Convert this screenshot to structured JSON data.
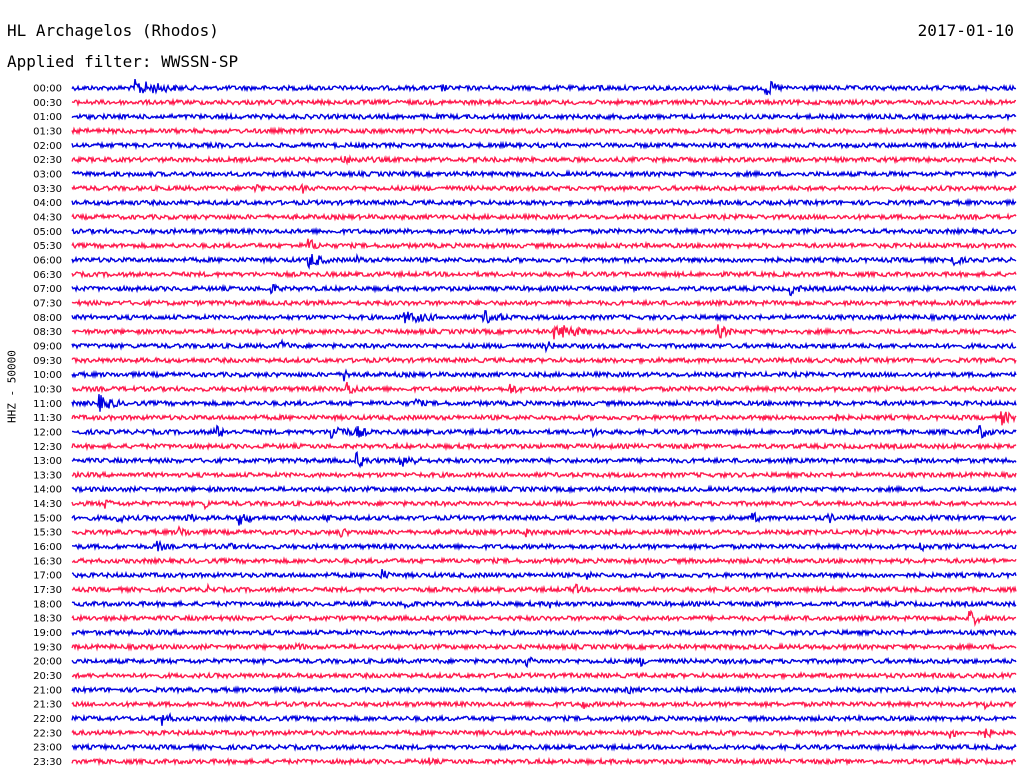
{
  "header": {
    "station": "HL Archagelos (Rhodos)",
    "date": "2017-01-10",
    "filter_label": "Applied filter: WWSSN-SP"
  },
  "chart_data": {
    "type": "line",
    "title": "HL Archagelos (Rhodos)",
    "ylabel": "HHZ - 50000",
    "row_labels": [
      "00:00",
      "00:30",
      "01:00",
      "01:30",
      "02:00",
      "02:30",
      "03:00",
      "03:30",
      "04:00",
      "04:30",
      "05:00",
      "05:30",
      "06:00",
      "06:30",
      "07:00",
      "07:30",
      "08:00",
      "08:30",
      "09:00",
      "09:30",
      "10:00",
      "10:30",
      "11:00",
      "11:30",
      "12:00",
      "12:30",
      "13:00",
      "13:30",
      "14:00",
      "14:30",
      "15:00",
      "15:30",
      "16:00",
      "16:30",
      "17:00",
      "17:30",
      "18:00",
      "18:30",
      "19:00",
      "19:30",
      "20:00",
      "20:30",
      "21:00",
      "21:30",
      "22:00",
      "22:30",
      "23:00",
      "23:30"
    ],
    "series_colors": [
      "#0000e0",
      "#ff1a4d"
    ],
    "x_range_minutes": [
      0,
      30
    ],
    "events": [
      {
        "row": 0,
        "t": 2.0,
        "amp": 9,
        "dur": 1.2
      },
      {
        "row": 0,
        "t": 11.7,
        "amp": 6,
        "dur": 0.3
      },
      {
        "row": 0,
        "t": 16.7,
        "amp": 6,
        "dur": 0.3
      },
      {
        "row": 0,
        "t": 22.0,
        "amp": 11,
        "dur": 0.4
      },
      {
        "row": 5,
        "t": 8.5,
        "amp": 4,
        "dur": 2.5
      },
      {
        "row": 7,
        "t": 5.8,
        "amp": 7,
        "dur": 0.3
      },
      {
        "row": 7,
        "t": 7.3,
        "amp": 6,
        "dur": 0.3
      },
      {
        "row": 11,
        "t": 7.5,
        "amp": 8,
        "dur": 0.4
      },
      {
        "row": 12,
        "t": 7.5,
        "amp": 10,
        "dur": 0.5
      },
      {
        "row": 12,
        "t": 9.0,
        "amp": 6,
        "dur": 0.3
      },
      {
        "row": 12,
        "t": 27.9,
        "amp": 8,
        "dur": 0.4
      },
      {
        "row": 14,
        "t": 6.3,
        "amp": 7,
        "dur": 0.3
      },
      {
        "row": 14,
        "t": 22.8,
        "amp": 8,
        "dur": 0.4
      },
      {
        "row": 16,
        "t": 10.5,
        "amp": 7,
        "dur": 1.2
      },
      {
        "row": 16,
        "t": 13.0,
        "amp": 8,
        "dur": 0.8
      },
      {
        "row": 17,
        "t": 15.3,
        "amp": 9,
        "dur": 1.0
      },
      {
        "row": 17,
        "t": 20.5,
        "amp": 8,
        "dur": 0.5
      },
      {
        "row": 18,
        "t": 6.6,
        "amp": 7,
        "dur": 0.4
      },
      {
        "row": 18,
        "t": 15.0,
        "amp": 7,
        "dur": 0.4
      },
      {
        "row": 20,
        "t": 8.6,
        "amp": 8,
        "dur": 0.4
      },
      {
        "row": 21,
        "t": 8.7,
        "amp": 9,
        "dur": 0.4
      },
      {
        "row": 21,
        "t": 13.9,
        "amp": 7,
        "dur": 0.4
      },
      {
        "row": 22,
        "t": 0.8,
        "amp": 10,
        "dur": 0.6
      },
      {
        "row": 22,
        "t": 10.9,
        "amp": 7,
        "dur": 0.3
      },
      {
        "row": 23,
        "t": 24.0,
        "amp": 8,
        "dur": 0.4
      },
      {
        "row": 23,
        "t": 29.5,
        "amp": 9,
        "dur": 0.4
      },
      {
        "row": 24,
        "t": 4.5,
        "amp": 9,
        "dur": 0.4
      },
      {
        "row": 24,
        "t": 8.2,
        "amp": 10,
        "dur": 0.6
      },
      {
        "row": 24,
        "t": 9.0,
        "amp": 8,
        "dur": 0.4
      },
      {
        "row": 24,
        "t": 16.4,
        "amp": 7,
        "dur": 0.4
      },
      {
        "row": 24,
        "t": 28.8,
        "amp": 9,
        "dur": 0.4
      },
      {
        "row": 26,
        "t": 9.0,
        "amp": 10,
        "dur": 0.4
      },
      {
        "row": 26,
        "t": 10.4,
        "amp": 9,
        "dur": 0.6
      },
      {
        "row": 29,
        "t": 1.0,
        "amp": 7,
        "dur": 0.3
      },
      {
        "row": 29,
        "t": 4.2,
        "amp": 6,
        "dur": 0.3
      },
      {
        "row": 30,
        "t": 1.4,
        "amp": 7,
        "dur": 0.3
      },
      {
        "row": 30,
        "t": 3.6,
        "amp": 7,
        "dur": 0.4
      },
      {
        "row": 30,
        "t": 5.3,
        "amp": 8,
        "dur": 0.5
      },
      {
        "row": 30,
        "t": 8.0,
        "amp": 7,
        "dur": 0.3
      },
      {
        "row": 30,
        "t": 21.6,
        "amp": 7,
        "dur": 0.3
      },
      {
        "row": 30,
        "t": 24.0,
        "amp": 7,
        "dur": 0.3
      },
      {
        "row": 31,
        "t": 3.4,
        "amp": 7,
        "dur": 0.4
      },
      {
        "row": 31,
        "t": 8.5,
        "amp": 7,
        "dur": 0.3
      },
      {
        "row": 31,
        "t": 14.4,
        "amp": 7,
        "dur": 0.3
      },
      {
        "row": 32,
        "t": 2.7,
        "amp": 7,
        "dur": 0.3
      },
      {
        "row": 32,
        "t": 4.9,
        "amp": 6,
        "dur": 0.3
      },
      {
        "row": 32,
        "t": 26.9,
        "amp": 7,
        "dur": 0.3
      },
      {
        "row": 34,
        "t": 9.8,
        "amp": 8,
        "dur": 0.3
      },
      {
        "row": 34,
        "t": 16.3,
        "amp": 6,
        "dur": 0.3
      },
      {
        "row": 35,
        "t": 4.2,
        "amp": 6,
        "dur": 0.4
      },
      {
        "row": 35,
        "t": 15.9,
        "amp": 8,
        "dur": 0.3
      },
      {
        "row": 36,
        "t": 10.5,
        "amp": 7,
        "dur": 0.4
      },
      {
        "row": 36,
        "t": 15.1,
        "amp": 7,
        "dur": 0.3
      },
      {
        "row": 37,
        "t": 28.5,
        "amp": 9,
        "dur": 0.5
      },
      {
        "row": 39,
        "t": 7.1,
        "amp": 7,
        "dur": 0.3
      },
      {
        "row": 40,
        "t": 14.4,
        "amp": 7,
        "dur": 0.3
      },
      {
        "row": 40,
        "t": 18.0,
        "amp": 7,
        "dur": 0.3
      },
      {
        "row": 42,
        "t": 17.6,
        "amp": 6,
        "dur": 0.3
      },
      {
        "row": 43,
        "t": 16.2,
        "amp": 6,
        "dur": 0.3
      },
      {
        "row": 43,
        "t": 29.0,
        "amp": 6,
        "dur": 0.3
      },
      {
        "row": 44,
        "t": 2.8,
        "amp": 9,
        "dur": 0.4
      },
      {
        "row": 45,
        "t": 27.9,
        "amp": 7,
        "dur": 0.3
      },
      {
        "row": 45,
        "t": 29.0,
        "amp": 7,
        "dur": 0.3
      },
      {
        "row": 47,
        "t": 11.3,
        "amp": 6,
        "dur": 0.3
      }
    ]
  }
}
